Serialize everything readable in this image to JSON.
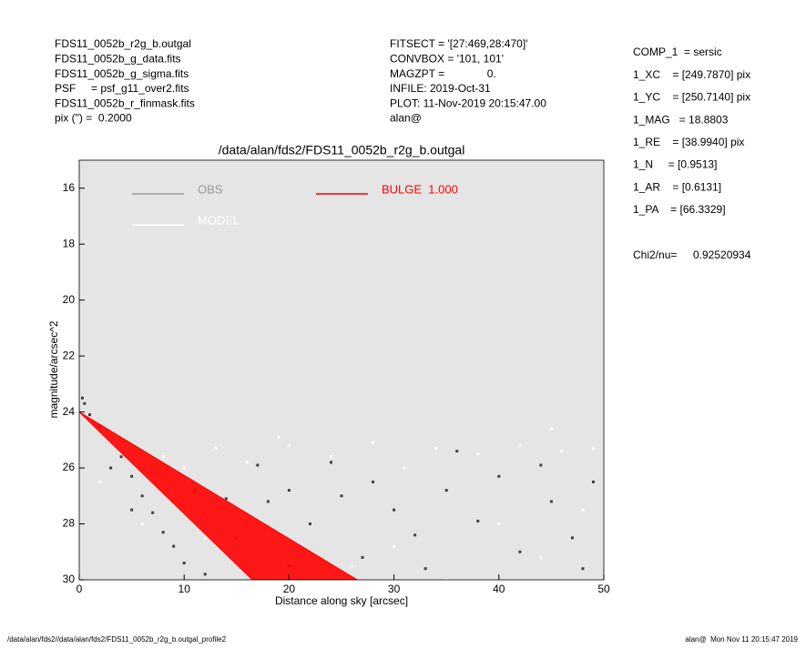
{
  "header": {
    "left": [
      "FDS11_0052b_r2g_b.outgal",
      "FDS11_0052b_g_data.fits",
      "FDS11_0052b_g_sigma.fits",
      "PSF     = psf_g11_over2.fits",
      "FDS11_0052b_r_finmask.fits",
      "pix (\") =  0.2000"
    ],
    "middle": [
      "FITSECT = '[27:469,28:470]'",
      "CONVBOX = '101, 101'",
      "MAGZPT =              0.",
      "INFILE: 2019-Oct-31",
      "PLOT: 11-Nov-2019 20:15:47.00",
      "alan@"
    ],
    "right": [
      "COMP_1  = sersic",
      "1_XC    = [249.7870] pix",
      "1_YC    = [250.7140] pix",
      "1_MAG   = 18.8803",
      "1_RE    = [38.9940] pix",
      "1_N     = [0.9513]",
      "1_AR    = [0.6131]",
      "1_PA    = [66.3329]"
    ],
    "chi2_label": "Chi2/nu=",
    "chi2_value": "0.92520934"
  },
  "footer": {
    "left": "/data/alan/fds2//data/alan/fds2/FDS11_0052b_r2g_b.outgal_profile2",
    "right": "alan@  Mon Nov 11 20:15:47 2019"
  },
  "chart_data": {
    "type": "scatter",
    "title": "/data/alan/fds2/FDS11_0052b_r2g_b.outgal",
    "x_label": "Distance along sky [arcsec]",
    "y_label": "magnitude/arcsec^2",
    "xlim": [
      0,
      50
    ],
    "xticks": [
      0,
      10,
      20,
      30,
      40,
      50
    ],
    "ylim": [
      15,
      30
    ],
    "yticks": [
      16,
      18,
      20,
      22,
      24,
      26,
      28,
      30
    ],
    "y_inverted": true,
    "background": "#e5e5e5",
    "series": [
      {
        "name": "OBS",
        "color": "#404040",
        "legend_color": "#999999",
        "kind": "points",
        "x": [
          0.3,
          0.5,
          1,
          2,
          3,
          4,
          5,
          6,
          7,
          8,
          9,
          10,
          3,
          5,
          12,
          15,
          18,
          20,
          22,
          25,
          28,
          30,
          32,
          35,
          38,
          40,
          42,
          45,
          47,
          49,
          33,
          27,
          14,
          20,
          24,
          36,
          44,
          48,
          11,
          17
        ],
        "values": [
          23.5,
          23.7,
          24.1,
          24.5,
          25,
          25.6,
          26.3,
          27,
          27.6,
          28.3,
          28.8,
          29.4,
          26,
          27.5,
          29.8,
          28.5,
          27.2,
          26.8,
          28,
          27,
          26.5,
          27.5,
          28.4,
          26.8,
          27.9,
          26.3,
          29,
          27.2,
          28.5,
          26.5,
          29.6,
          29.2,
          27.1,
          29.5,
          25.8,
          25.4,
          25.9,
          29.6,
          26.8,
          25.9
        ]
      },
      {
        "name": "MODEL",
        "color": "#ffffff",
        "legend_color": "#ffffff",
        "kind": "points",
        "x": [
          1,
          3,
          5,
          8,
          10,
          13,
          16,
          20,
          24,
          28,
          31,
          34,
          38,
          42,
          46,
          49,
          2,
          6,
          9,
          12,
          26,
          30,
          40,
          44,
          48,
          35,
          19,
          45
        ],
        "values": [
          24.3,
          25,
          25.4,
          25.6,
          26,
          25.3,
          25.8,
          25.2,
          25.6,
          25.1,
          26,
          25.3,
          25.5,
          25.2,
          25.4,
          25.3,
          26.5,
          28,
          27,
          28.5,
          29.5,
          28.8,
          28,
          29.2,
          27.5,
          30,
          24.9,
          24.6
        ]
      },
      {
        "name": "BULGE  1.000",
        "color": "#ff0000",
        "legend_color": "#ff0000",
        "kind": "area",
        "x": [
          0,
          16.5,
          26.5
        ],
        "values": [
          24,
          30,
          30
        ]
      }
    ]
  }
}
